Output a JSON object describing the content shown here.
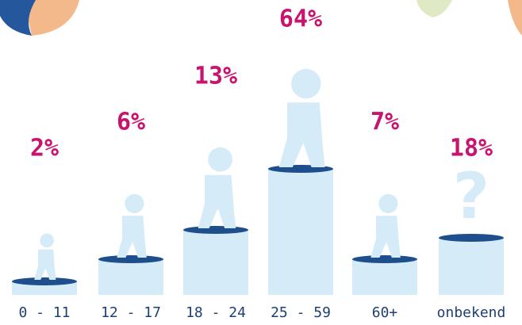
{
  "chart_data": {
    "type": "bar",
    "categories": [
      "0 - 11",
      "12 - 17",
      "18 - 24",
      "25 - 59",
      "60+",
      "onbekend"
    ],
    "values": [
      2,
      6,
      13,
      64,
      7,
      18
    ],
    "value_labels": [
      "2%",
      "6%",
      "13%",
      "64%",
      "7%",
      "18%"
    ],
    "color": "#d6ebf8"
  }
}
